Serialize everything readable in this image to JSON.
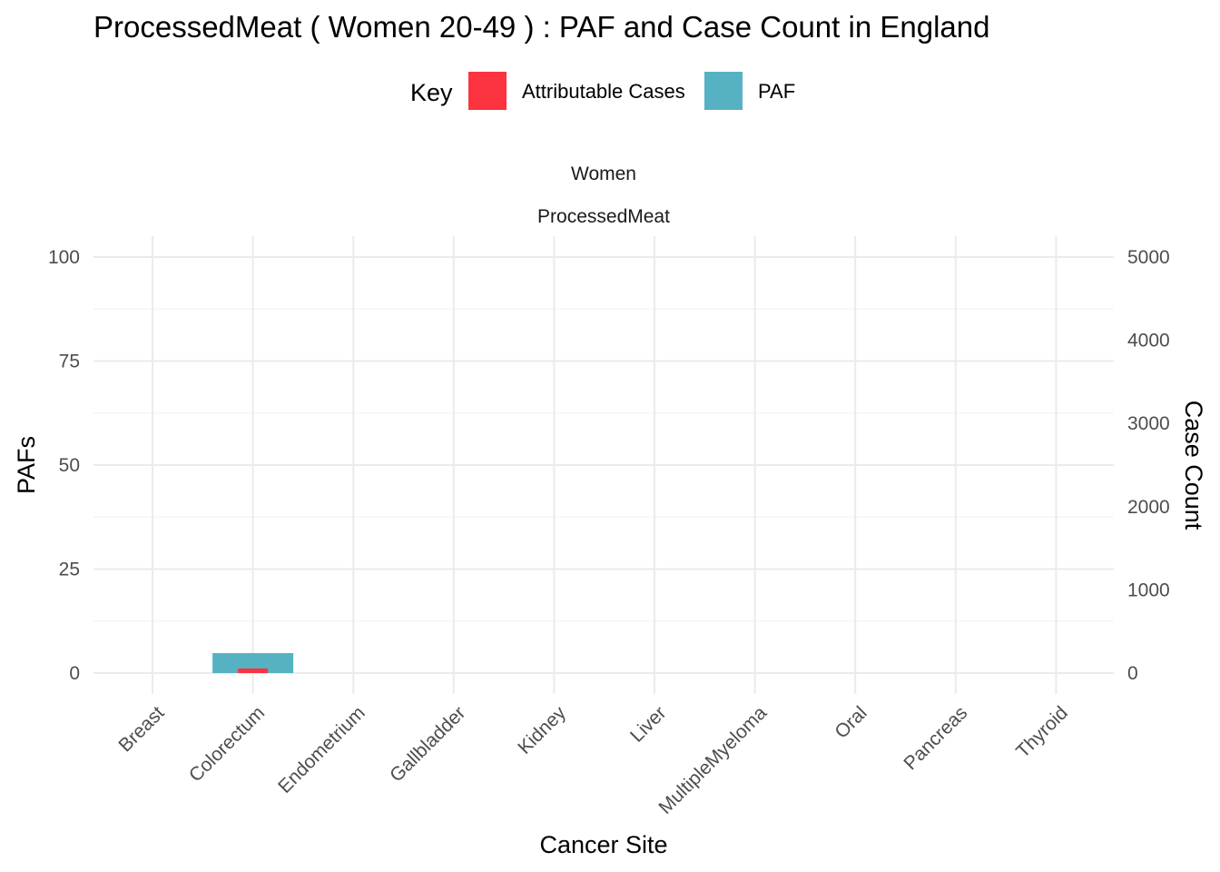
{
  "chart_data": {
    "type": "bar",
    "title": "ProcessedMeat ( Women 20-49 ) : PAF and Case Count in England",
    "legend": {
      "title": "Key",
      "placement": "top",
      "entries": [
        {
          "label": "Attributable Cases",
          "color": "#FC343F"
        },
        {
          "label": "PAF",
          "color": "#56B2C3"
        }
      ]
    },
    "facet_labels": [
      "Women",
      "ProcessedMeat"
    ],
    "xlabel": "Cancer Site",
    "ylabel": "PAFs",
    "y2label": "Case Count",
    "categories": [
      "Breast",
      "Colorectum",
      "Endometrium",
      "Gallbladder",
      "Kidney",
      "Liver",
      "MultipleMyeloma",
      "Oral",
      "Pancreas",
      "Thyroid"
    ],
    "series": [
      {
        "name": "PAF",
        "axis": "left",
        "color": "#56B2C3",
        "values": [
          0,
          4.8,
          0,
          0,
          0,
          0,
          0,
          0,
          0,
          0
        ]
      },
      {
        "name": "Attributable Cases",
        "axis": "right",
        "color": "#FC343F",
        "values": [
          0,
          55,
          0,
          0,
          0,
          0,
          0,
          0,
          0,
          0
        ]
      }
    ],
    "ylim": [
      0,
      100
    ],
    "y2lim": [
      0,
      5000
    ],
    "yticks": [
      0,
      25,
      50,
      75,
      100
    ],
    "y2ticks": [
      0,
      1000,
      2000,
      3000,
      4000,
      5000
    ],
    "grid": true
  }
}
